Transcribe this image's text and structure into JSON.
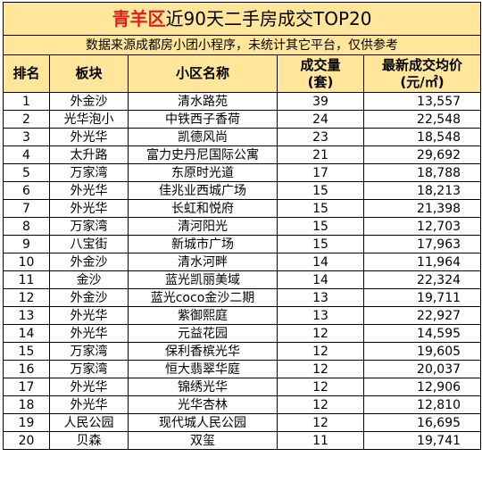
{
  "title": {
    "highlight": "青羊区",
    "rest": "近90天二手房成交TOP20"
  },
  "subtitle": "数据来源成都房小团小程序，未统计其它平台，仅供参考",
  "headers": {
    "rank": "排名",
    "block": "板块",
    "community": "小区名称",
    "volume_line1": "成交量",
    "volume_line2": "(套)",
    "price_line1": "最新成交均价",
    "price_line2": "(元/㎡)"
  },
  "rows": [
    {
      "rank": "1",
      "block": "外金沙",
      "community": "清水路苑",
      "volume": "39",
      "price": "13,557"
    },
    {
      "rank": "2",
      "block": "光华泡小",
      "community": "中铁西子香荷",
      "volume": "24",
      "price": "22,548"
    },
    {
      "rank": "3",
      "block": "外光华",
      "community": "凯德风尚",
      "volume": "23",
      "price": "18,548"
    },
    {
      "rank": "4",
      "block": "太升路",
      "community": "富力史丹尼国际公寓",
      "volume": "21",
      "price": "29,692"
    },
    {
      "rank": "5",
      "block": "万家湾",
      "community": "东原时光道",
      "volume": "17",
      "price": "18,788"
    },
    {
      "rank": "6",
      "block": "外光华",
      "community": "佳兆业西城广场",
      "volume": "15",
      "price": "18,213"
    },
    {
      "rank": "7",
      "block": "外光华",
      "community": "长虹和悦府",
      "volume": "15",
      "price": "21,398"
    },
    {
      "rank": "8",
      "block": "万家湾",
      "community": "清河阳光",
      "volume": "15",
      "price": "12,703"
    },
    {
      "rank": "9",
      "block": "八宝街",
      "community": "新城市广场",
      "volume": "15",
      "price": "17,963"
    },
    {
      "rank": "10",
      "block": "外金沙",
      "community": "清水河畔",
      "volume": "14",
      "price": "11,964"
    },
    {
      "rank": "11",
      "block": "金沙",
      "community": "蓝光凯丽美域",
      "volume": "14",
      "price": "22,324"
    },
    {
      "rank": "12",
      "block": "外金沙",
      "community": "蓝光coco金沙二期",
      "volume": "13",
      "price": "19,711"
    },
    {
      "rank": "13",
      "block": "外光华",
      "community": "紫御熙庭",
      "volume": "13",
      "price": "22,927"
    },
    {
      "rank": "14",
      "block": "外光华",
      "community": "元益花园",
      "volume": "12",
      "price": "14,595"
    },
    {
      "rank": "15",
      "block": "万家湾",
      "community": "保利香槟光华",
      "volume": "12",
      "price": "19,605"
    },
    {
      "rank": "16",
      "block": "万家湾",
      "community": "恒大翡翠华庭",
      "volume": "12",
      "price": "20,037"
    },
    {
      "rank": "17",
      "block": "外光华",
      "community": "锦绣光华",
      "volume": "12",
      "price": "12,906"
    },
    {
      "rank": "18",
      "block": "外光华",
      "community": "光华杏林",
      "volume": "12",
      "price": "12,810"
    },
    {
      "rank": "19",
      "block": "人民公园",
      "community": "现代城人民公园",
      "volume": "12",
      "price": "16,695"
    },
    {
      "rank": "20",
      "block": "贝森",
      "community": "双玺",
      "volume": "11",
      "price": "19,741"
    }
  ]
}
